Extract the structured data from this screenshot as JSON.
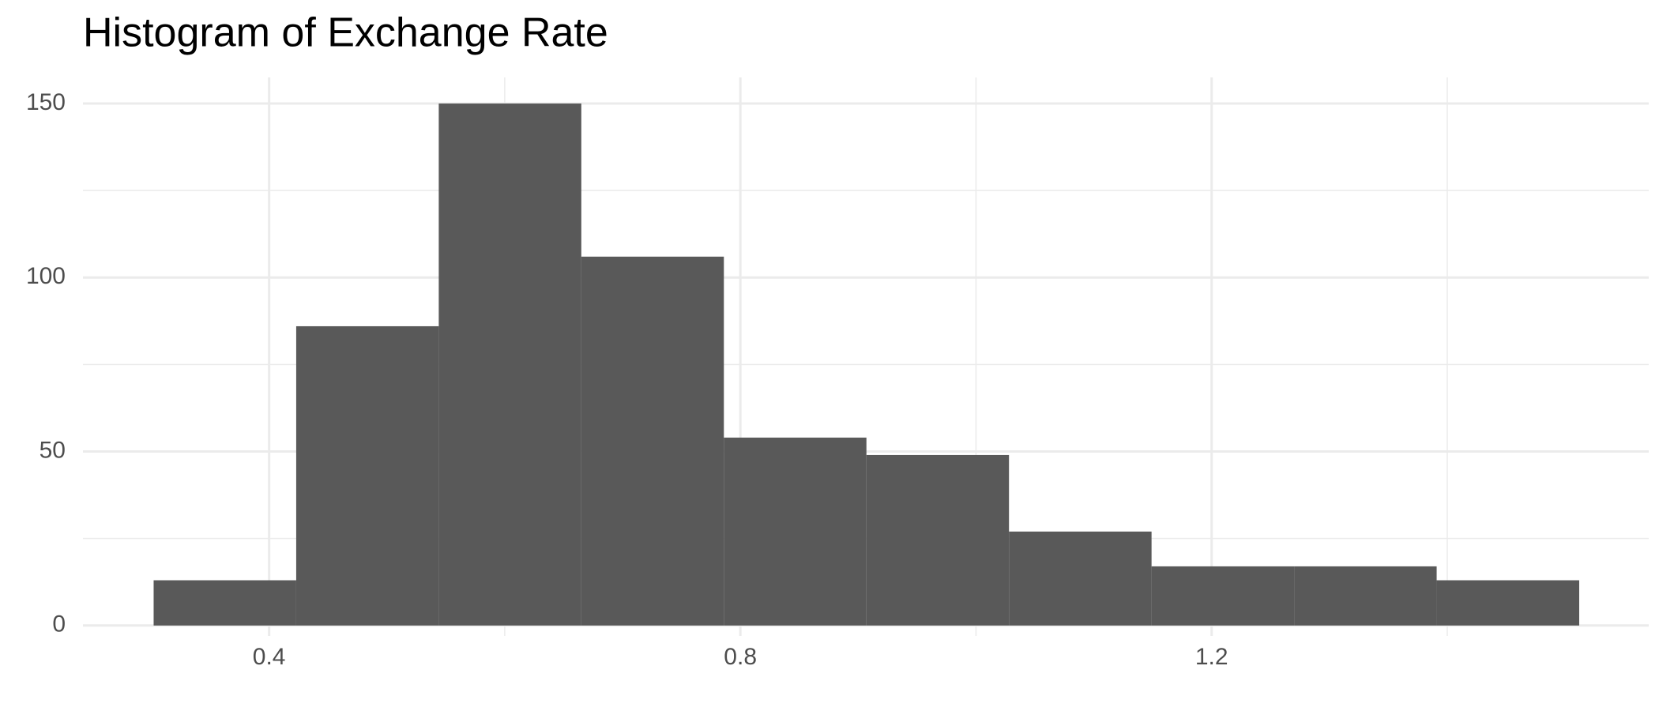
{
  "chart_data": {
    "type": "histogram",
    "title": "Histogram of Exchange Rate",
    "bins": [
      0.302,
      0.423,
      0.544,
      0.665,
      0.786,
      0.907,
      1.028,
      1.149,
      1.27,
      1.391,
      1.512
    ],
    "values": [
      13,
      86,
      150,
      106,
      54,
      49,
      27,
      17,
      17,
      13
    ],
    "color": "#595959",
    "xlim": [
      0.242,
      1.571
    ],
    "xticks": [
      0.4,
      0.8,
      1.2
    ],
    "x_minor_ticks": [
      0.6,
      1.0,
      1.4
    ],
    "ylim": [
      -3,
      157.5
    ],
    "yticks": [
      0,
      50,
      100,
      150
    ],
    "y_minor_ticks": [
      25,
      75,
      125
    ],
    "grid": true
  }
}
